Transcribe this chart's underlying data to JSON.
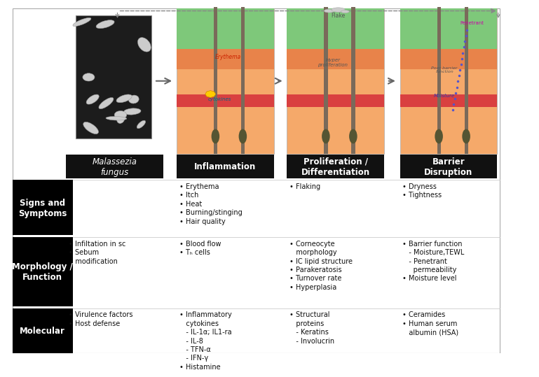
{
  "bg_color": "#ffffff",
  "header_bg": "#111111",
  "header_fg": "#ffffff",
  "row_label_bg": "#000000",
  "row_label_fg": "#ffffff",
  "col_headers": [
    "Malassezia\nfungus",
    "Inflammation",
    "Proliferation /\nDifferentiation",
    "Barrier\nDisruption"
  ],
  "row_labels": [
    "Signs and\nSymptoms",
    "Morphology /\nFunction",
    "Molecular"
  ],
  "cell_contents": [
    [
      "",
      "• Erythema\n• Itch\n• Heat\n• Burning/stinging\n• Hair quality",
      "• Flaking",
      "• Dryness\n• Tightness"
    ],
    [
      "• Infiltation in sc\n• Sebum\n   modification",
      "• Blood flow\n• Tₕ cells",
      "• Corneocyte\n   morphology\n• IC lipid structure\n• Parakeratosis\n• Turnover rate\n• Hyperplasia",
      "• Barrier function\n   - Moisture,TEWL\n   - Penetrant\n     permeability\n• Moisture level"
    ],
    [
      "• Virulence factors\n• Host defense",
      "• Inflammatory\n   cytokines\n   - IL-1α; IL1-ra\n   - IL-8\n   - TFN-α\n   - IFN-γ\n• Histamine",
      "• Structural\n   proteins\n   - Keratins\n   - Involucrin",
      "• Ceramides\n• Human serum\n   albumin (HSA)"
    ]
  ],
  "font_size_header": 8.5,
  "font_size_cell": 7.0,
  "font_size_row_label": 8.5
}
